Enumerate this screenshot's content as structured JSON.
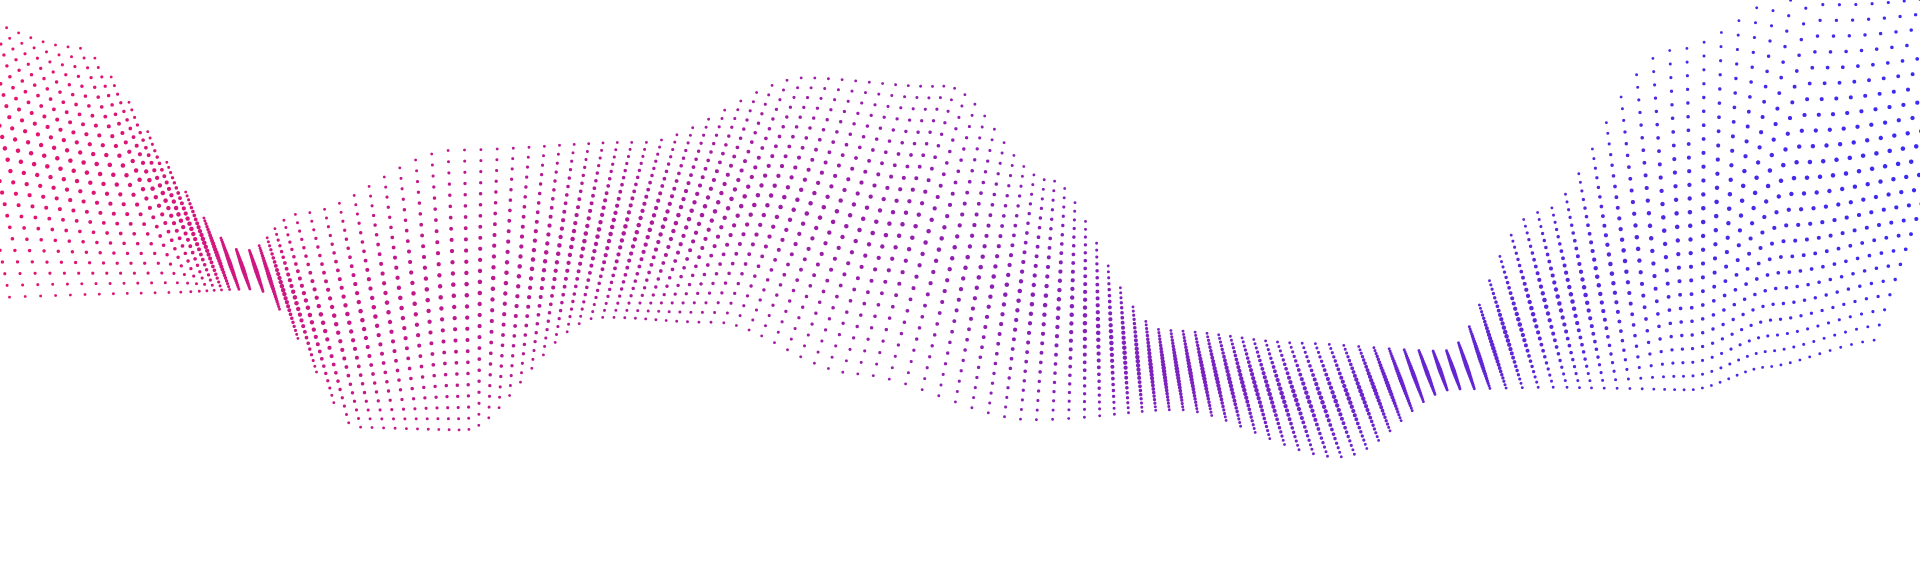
{
  "graphic": {
    "kind": "decorative dotted wave ribbon",
    "colors": {
      "start": "#E5146F",
      "end": "#3A2BF2"
    }
  }
}
